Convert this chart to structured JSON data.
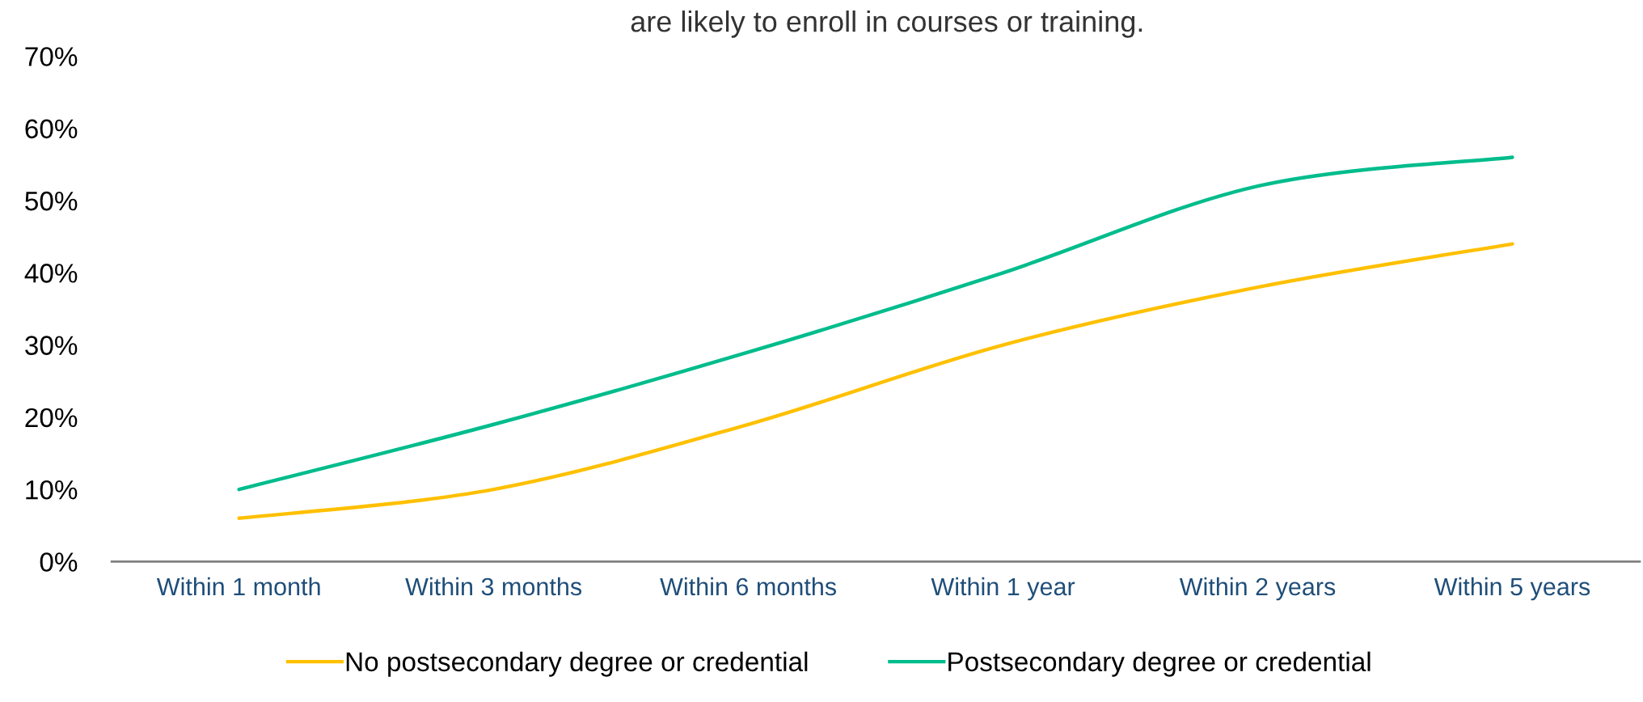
{
  "chart_data": {
    "type": "line",
    "title": "are likely to enroll in courses or training.",
    "categories": [
      "Within 1 month",
      "Within 3 months",
      "Within 6 months",
      "Within 1 year",
      "Within 2 years",
      "Within 5 years"
    ],
    "series": [
      {
        "name": "No postsecondary degree or credential",
        "color": "#ffc000",
        "values": [
          6,
          10,
          19,
          30,
          38,
          44
        ]
      },
      {
        "name": "Postsecondary degree or credential",
        "color": "#00bc8c",
        "values": [
          10,
          19,
          29,
          40,
          52,
          56
        ]
      }
    ],
    "ylim": [
      0,
      70
    ],
    "yticks": [
      {
        "value": 0,
        "label": "0%"
      },
      {
        "value": 10,
        "label": "10%"
      },
      {
        "value": 20,
        "label": "20%"
      },
      {
        "value": 30,
        "label": "30%"
      },
      {
        "value": 40,
        "label": "40%"
      },
      {
        "value": 50,
        "label": "50%"
      },
      {
        "value": 60,
        "label": "60%"
      },
      {
        "value": 70,
        "label": "70%"
      }
    ],
    "grid": false,
    "legend": "bottom",
    "marker": "none",
    "line_style": "solid"
  }
}
